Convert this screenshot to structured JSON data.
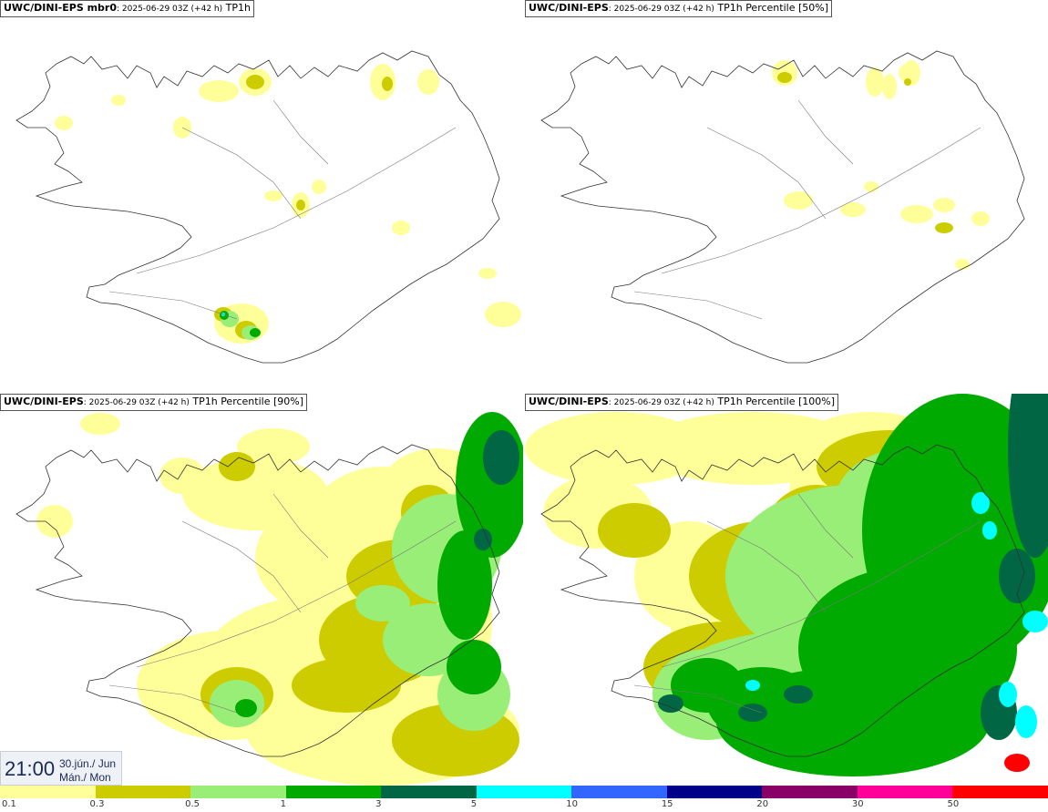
{
  "panels": [
    {
      "model": "UWC/DINI-EPS mbr0",
      "run": ": 2025-06-29 03Z (+42 h)",
      "field": " TP1h",
      "coverage": "sparse"
    },
    {
      "model": "UWC/DINI-EPS",
      "run": ": 2025-06-29 03Z (+42 h)",
      "field": " TP1h Percentile [50%]",
      "coverage": "minimal"
    },
    {
      "model": "UWC/DINI-EPS",
      "run": ": 2025-06-29 03Z (+42 h)",
      "field": " TP1h Percentile [90%]",
      "coverage": "moderate"
    },
    {
      "model": "UWC/DINI-EPS",
      "run": ": 2025-06-29 03Z (+42 h)",
      "field": " TP1h Percentile [100%]",
      "coverage": "heavy"
    }
  ],
  "time": {
    "clock": "21:00",
    "date_line1": "30.jún./ Jun",
    "date_line2": "Mán./ Mon"
  },
  "legend": {
    "colors": [
      "#ffff99",
      "#cccc00",
      "#99ee77",
      "#00aa00",
      "#006644",
      "#00ffff",
      "#3366ff",
      "#000088",
      "#880066",
      "#ff0099",
      "#ff0000"
    ],
    "ticks": [
      "0.1",
      "0.3",
      "0.5",
      "1",
      "3",
      "5",
      "10",
      "15",
      "20",
      "30",
      "50"
    ]
  }
}
